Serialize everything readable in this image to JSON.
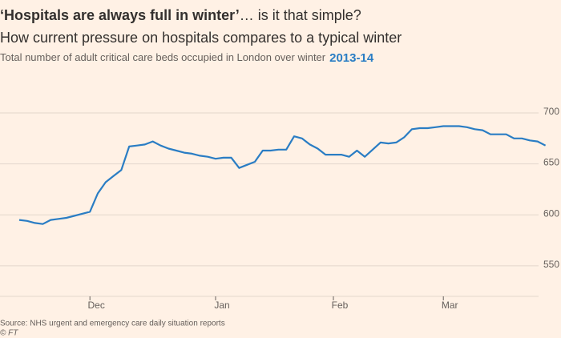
{
  "chart_data": {
    "type": "line",
    "title_bold": "‘Hospitals are always full in winter’",
    "title_rest": "… is it that simple?",
    "subtitle": "How current pressure on hospitals compares to a typical winter",
    "description": "Total number of adult critical care beds occupied in London over winter",
    "highlight": "2013-14",
    "source": "Source: NHS urgent and emergency care daily situation reports",
    "credit": "© FT",
    "categories": [
      null,
      null,
      null,
      null,
      null,
      null,
      null,
      null,
      null,
      "Dec",
      null,
      null,
      null,
      null,
      null,
      null,
      null,
      null,
      null,
      null,
      null,
      null,
      null,
      null,
      null,
      "Jan",
      null,
      null,
      null,
      null,
      null,
      null,
      null,
      null,
      null,
      null,
      null,
      null,
      null,
      null,
      "Feb",
      null,
      null,
      null,
      null,
      null,
      null,
      null,
      null,
      null,
      null,
      null,
      null,
      null,
      "Mar",
      null,
      null,
      null,
      null,
      null,
      null,
      null,
      null,
      null,
      null,
      null,
      null,
      null
    ],
    "series": [
      {
        "name": "2013-14",
        "color": "#2a7dc4",
        "values": [
          595,
          594,
          592,
          591,
          595,
          596,
          597,
          599,
          601,
          603,
          621,
          632,
          638,
          644,
          667,
          668,
          669,
          672,
          668,
          665,
          663,
          661,
          660,
          658,
          657,
          655,
          656,
          656,
          646,
          649,
          652,
          663,
          663,
          664,
          664,
          677,
          675,
          669,
          665,
          659,
          659,
          659,
          657,
          663,
          657,
          664,
          671,
          670,
          671,
          676,
          684,
          685,
          685,
          686,
          687,
          687,
          687,
          686,
          684,
          683,
          679,
          679,
          679,
          675,
          675,
          673,
          672,
          668
        ]
      }
    ],
    "ylim": [
      520,
      720
    ],
    "yticks": [
      550,
      600,
      650,
      700
    ],
    "grid": true
  }
}
